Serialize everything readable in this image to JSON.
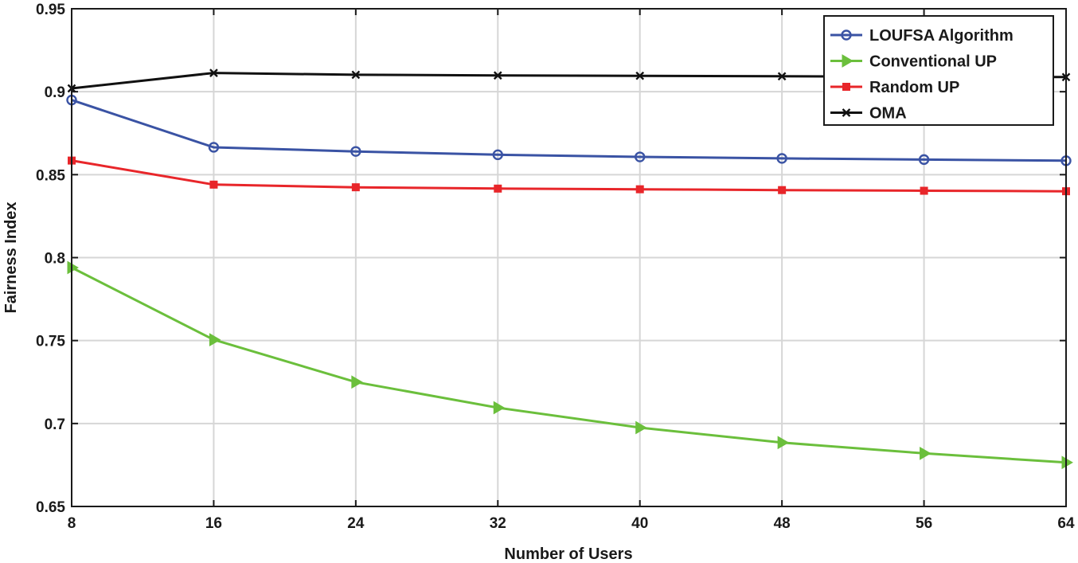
{
  "chart_data": {
    "type": "line",
    "title": "",
    "xlabel": "Number of Users",
    "ylabel": "Fairness Index",
    "x": [
      8,
      16,
      24,
      32,
      40,
      48,
      56,
      64
    ],
    "xticks": [
      "8",
      "16",
      "24",
      "32",
      "40",
      "48",
      "56",
      "64"
    ],
    "yticks": [
      "0.65",
      "0.7",
      "0.75",
      "0.8",
      "0.85",
      "0.9",
      "0.95"
    ],
    "xlim": [
      8,
      64
    ],
    "ylim": [
      0.65,
      0.95
    ],
    "grid": true,
    "legend_position": "top-right",
    "series": [
      {
        "name": "LOUFSA Algorithm",
        "color": "#3a53a4",
        "marker": "circle",
        "values": [
          0.895,
          0.8665,
          0.864,
          0.862,
          0.8607,
          0.8598,
          0.8591,
          0.8584
        ]
      },
      {
        "name": "Conventional UP",
        "color": "#6bbf3c",
        "marker": "triangle-right",
        "values": [
          0.794,
          0.7505,
          0.725,
          0.7095,
          0.6975,
          0.6885,
          0.682,
          0.6765
        ]
      },
      {
        "name": "Random UP",
        "color": "#e8262a",
        "marker": "square",
        "values": [
          0.8585,
          0.844,
          0.8424,
          0.8416,
          0.8412,
          0.8407,
          0.8403,
          0.84
        ]
      },
      {
        "name": "OMA",
        "color": "#111111",
        "marker": "x",
        "values": [
          0.902,
          0.9113,
          0.9102,
          0.9098,
          0.9096,
          0.9093,
          0.909,
          0.9088
        ]
      }
    ]
  }
}
